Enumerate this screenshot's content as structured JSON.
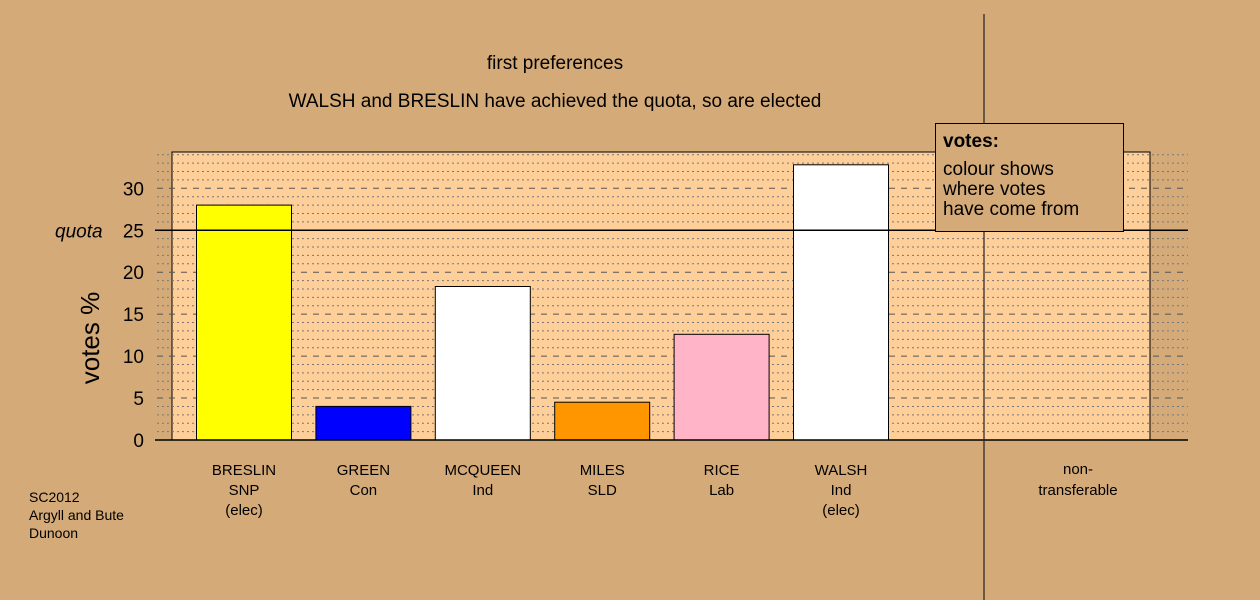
{
  "titles": {
    "line1": "first preferences",
    "line2": "WALSH and BRESLIN have achieved the quota, so are elected"
  },
  "legend": {
    "title": "votes:",
    "lines": [
      "colour shows",
      "where votes",
      "have come from"
    ]
  },
  "footer": [
    "SC2012",
    "Argyll and Bute",
    "Dunoon"
  ],
  "colors": {
    "background": "#d4aa78",
    "plot_bg": "#fecf99",
    "yellow": "#ffff00",
    "blue": "#0000ff",
    "white": "#ffffff",
    "orange": "#ff9600",
    "pink": "#ffb4c8"
  },
  "chart_data": {
    "type": "bar",
    "title": "first preferences",
    "subtitle": "WALSH and BRESLIN have achieved the quota, so are elected",
    "ylabel": "votes %",
    "ylim": [
      0,
      34.5
    ],
    "yticks": [
      0,
      5,
      10,
      15,
      20,
      25,
      30
    ],
    "quota": {
      "label": "quota",
      "value": 25
    },
    "grid": true,
    "legend_position": "top-right",
    "categories": [
      {
        "lines": [
          "BRESLIN",
          "SNP",
          "(elec)"
        ],
        "value": 28.0,
        "color": "#ffff00"
      },
      {
        "lines": [
          "GREEN",
          "Con"
        ],
        "value": 4.0,
        "color": "#0000ff"
      },
      {
        "lines": [
          "MCQUEEN",
          "Ind"
        ],
        "value": 18.3,
        "color": "#ffffff"
      },
      {
        "lines": [
          "MILES",
          "SLD"
        ],
        "value": 4.5,
        "color": "#ff9600"
      },
      {
        "lines": [
          "RICE",
          "Lab"
        ],
        "value": 12.6,
        "color": "#ffb4c8"
      },
      {
        "lines": [
          "WALSH",
          "Ind",
          "(elec)"
        ],
        "value": 32.8,
        "color": "#ffffff"
      }
    ],
    "nontransferable": {
      "lines": [
        "non-",
        "transferable"
      ],
      "value": 0
    }
  }
}
